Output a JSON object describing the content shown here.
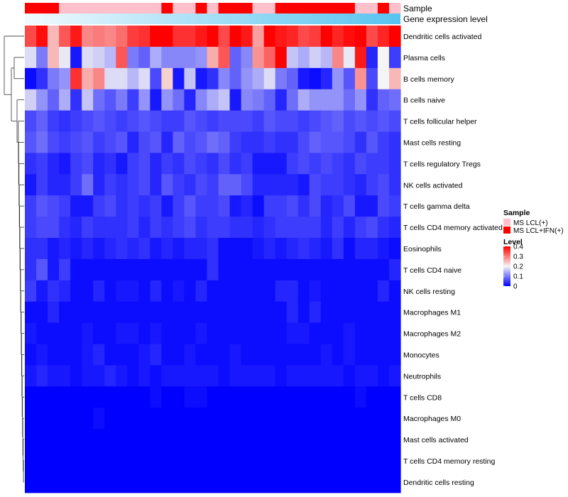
{
  "chart_data": {
    "type": "heatmap",
    "title": "",
    "annotation_tracks": [
      {
        "name": "Sample",
        "values": [
          "MS LCL+IFN(+)",
          "MS LCL+IFN(+)",
          "MS LCL+IFN(+)",
          "MS LCL(+)",
          "MS LCL(+)",
          "MS LCL(+)",
          "MS LCL(+)",
          "MS LCL(+)",
          "MS LCL(+)",
          "MS LCL(+)",
          "MS LCL(+)",
          "MS LCL(+)",
          "MS LCL+IFN(+)",
          "MS LCL(+)",
          "MS LCL(+)",
          "MS LCL+IFN(+)",
          "MS LCL(+)",
          "MS LCL+IFN(+)",
          "MS LCL+IFN(+)",
          "MS LCL+IFN(+)",
          "MS LCL(+)",
          "MS LCL(+)",
          "MS LCL+IFN(+)",
          "MS LCL+IFN(+)",
          "MS LCL+IFN(+)",
          "MS LCL+IFN(+)",
          "MS LCL+IFN(+)",
          "MS LCL+IFN(+)",
          "MS LCL+IFN(+)",
          "MS LCL(+)",
          "MS LCL(+)",
          "MS LCL+IFN(+)",
          "MS LCL(+)"
        ]
      },
      {
        "name": "Gene expression level",
        "gradient": [
          "#f2fafe",
          "#57c3ef"
        ]
      }
    ],
    "rows": [
      {
        "name": "Dendritic cells activated",
        "values": [
          0.34,
          0.39,
          0.25,
          0.33,
          0.38,
          0.29,
          0.3,
          0.29,
          0.31,
          0.35,
          0.36,
          0.4,
          0.4,
          0.36,
          0.36,
          0.38,
          0.4,
          0.34,
          0.4,
          0.38,
          0.27,
          0.4,
          0.38,
          0.37,
          0.34,
          0.35,
          0.4,
          0.37,
          0.39,
          0.4,
          0.34,
          0.37,
          0.4
        ]
      },
      {
        "name": "Plasma cells",
        "values": [
          0.18,
          0.1,
          0.25,
          0.19,
          0.02,
          0.18,
          0.17,
          0.15,
          0.33,
          0.1,
          0.08,
          0.14,
          0.11,
          0.11,
          0.11,
          0.12,
          0.26,
          0.33,
          0.08,
          0.11,
          0.28,
          0.32,
          0.4,
          0.16,
          0.14,
          0.17,
          0.15,
          0.29,
          0.19,
          0.38,
          0.03,
          0.2,
          0.05
        ]
      },
      {
        "name": "B cells memory",
        "values": [
          0.01,
          0.04,
          0.1,
          0.12,
          0.36,
          0.26,
          0.29,
          0.18,
          0.18,
          0.15,
          0.18,
          0.06,
          0.23,
          0.02,
          0.16,
          0.02,
          0.04,
          0.11,
          0.08,
          0.12,
          0.14,
          0.18,
          0.1,
          0.08,
          0.02,
          0.01,
          0.03,
          0.12,
          0.07,
          0.28,
          0.06,
          0.2,
          0.25
        ]
      },
      {
        "name": "B cells naive",
        "values": [
          0.17,
          0.12,
          0.08,
          0.14,
          0.04,
          0.16,
          0.09,
          0.07,
          0.1,
          0.05,
          0.12,
          0.02,
          0.12,
          0.09,
          0.03,
          0.11,
          0.14,
          0.16,
          0.02,
          0.11,
          0.1,
          0.08,
          0.03,
          0.09,
          0.14,
          0.12,
          0.12,
          0.12,
          0.09,
          0.12,
          0.04,
          0.08,
          0.09
        ]
      },
      {
        "name": "T cells follicular helper",
        "values": [
          0.06,
          0.08,
          0.05,
          0.04,
          0.05,
          0.06,
          0.07,
          0.06,
          0.05,
          0.06,
          0.07,
          0.06,
          0.05,
          0.05,
          0.07,
          0.06,
          0.05,
          0.06,
          0.06,
          0.06,
          0.05,
          0.07,
          0.06,
          0.06,
          0.05,
          0.06,
          0.07,
          0.08,
          0.06,
          0.07,
          0.06,
          0.07,
          0.06
        ]
      },
      {
        "name": "Mast cells resting",
        "values": [
          0.07,
          0.09,
          0.06,
          0.05,
          0.06,
          0.07,
          0.05,
          0.06,
          0.07,
          0.03,
          0.06,
          0.07,
          0.03,
          0.08,
          0.06,
          0.07,
          0.09,
          0.08,
          0.05,
          0.04,
          0.04,
          0.05,
          0.04,
          0.04,
          0.06,
          0.08,
          0.07,
          0.07,
          0.06,
          0.04,
          0.07,
          0.05,
          0.04
        ]
      },
      {
        "name": "T cells regulatory  Tregs",
        "values": [
          0.04,
          0.05,
          0.03,
          0.02,
          0.05,
          0.06,
          0.03,
          0.04,
          0.02,
          0.05,
          0.06,
          0.03,
          0.05,
          0.04,
          0.06,
          0.05,
          0.04,
          0.06,
          0.04,
          0.05,
          0.02,
          0.02,
          0.02,
          0.05,
          0.06,
          0.05,
          0.06,
          0.05,
          0.04,
          0.06,
          0.05,
          0.05,
          0.04
        ]
      },
      {
        "name": "NK cells activated",
        "values": [
          0.02,
          0.05,
          0.03,
          0.03,
          0.05,
          0.09,
          0.03,
          0.05,
          0.04,
          0.05,
          0.06,
          0.03,
          0.07,
          0.05,
          0.04,
          0.06,
          0.05,
          0.08,
          0.08,
          0.06,
          0.03,
          0.03,
          0.03,
          0.03,
          0.02,
          0.06,
          0.05,
          0.05,
          0.04,
          0.03,
          0.05,
          0.06,
          0.04
        ]
      },
      {
        "name": "T cells gamma delta",
        "values": [
          0.05,
          0.07,
          0.06,
          0.05,
          0.02,
          0.02,
          0.05,
          0.06,
          0.04,
          0.05,
          0.04,
          0.05,
          0.02,
          0.05,
          0.07,
          0.05,
          0.05,
          0.06,
          0.02,
          0.03,
          0.01,
          0.05,
          0.05,
          0.06,
          0.04,
          0.06,
          0.03,
          0.04,
          0.06,
          0.02,
          0.02,
          0.06,
          0.05
        ]
      },
      {
        "name": "T cells CD4 memory activated",
        "values": [
          0.05,
          0.06,
          0.06,
          0.04,
          0.03,
          0.05,
          0.04,
          0.04,
          0.04,
          0.05,
          0.03,
          0.05,
          0.04,
          0.05,
          0.06,
          0.04,
          0.05,
          0.05,
          0.04,
          0.04,
          0.03,
          0.04,
          0.05,
          0.05,
          0.05,
          0.05,
          0.03,
          0.05,
          0.03,
          0.05,
          0.06,
          0.04,
          0.03
        ]
      },
      {
        "name": "Eosinophils",
        "values": [
          0.04,
          0.04,
          0.02,
          0.03,
          0.02,
          0.03,
          0.02,
          0.03,
          0.04,
          0.03,
          0.04,
          0.02,
          0.03,
          0.02,
          0.03,
          0.03,
          0.04,
          0.01,
          0.01,
          0.01,
          0.02,
          0.03,
          0.02,
          0.03,
          0.04,
          0.03,
          0.02,
          0.04,
          0.01,
          0.03,
          0.03,
          0.02,
          0.01
        ]
      },
      {
        "name": "T cells CD4 naive",
        "values": [
          0.04,
          0.07,
          0.02,
          0.05,
          0.01,
          0.01,
          0.01,
          0.01,
          0.01,
          0.01,
          0.01,
          0.01,
          0.01,
          0.01,
          0.01,
          0.01,
          0.04,
          0.01,
          0.01,
          0.01,
          0.01,
          0.01,
          0.01,
          0.01,
          0.01,
          0.01,
          0.01,
          0.01,
          0.01,
          0.01,
          0.01,
          0.01,
          0.03
        ]
      },
      {
        "name": "NK cells resting",
        "values": [
          0.05,
          0.02,
          0.04,
          0.03,
          0.01,
          0.01,
          0.03,
          0.01,
          0.02,
          0.02,
          0.01,
          0.03,
          0.01,
          0.02,
          0.01,
          0.03,
          0.01,
          0.01,
          0.01,
          0.01,
          0.01,
          0.01,
          0.03,
          0.03,
          0.01,
          0.02,
          0.01,
          0.01,
          0.01,
          0.01,
          0.01,
          0.03,
          0.01
        ]
      },
      {
        "name": "Macrophages M1",
        "values": [
          0.01,
          0.01,
          0.03,
          0.01,
          0.01,
          0.01,
          0.01,
          0.01,
          0.01,
          0.01,
          0.01,
          0.01,
          0.01,
          0.01,
          0.01,
          0.01,
          0.01,
          0.01,
          0.01,
          0.01,
          0.01,
          0.01,
          0.01,
          0.03,
          0.01,
          0.03,
          0.01,
          0.01,
          0.01,
          0.01,
          0.01,
          0.01,
          0.01
        ]
      },
      {
        "name": "Macrophages M2",
        "values": [
          0.02,
          0.01,
          0.01,
          0.01,
          0.01,
          0.02,
          0.01,
          0.01,
          0.02,
          0.02,
          0.01,
          0.02,
          0.01,
          0.01,
          0.01,
          0.02,
          0.01,
          0.01,
          0.01,
          0.01,
          0.01,
          0.01,
          0.01,
          0.02,
          0.02,
          0.01,
          0.01,
          0.01,
          0.02,
          0.01,
          0.01,
          0.01,
          0.01
        ]
      },
      {
        "name": "Monocytes",
        "values": [
          0.01,
          0.02,
          0.01,
          0.01,
          0.01,
          0.02,
          0.03,
          0.01,
          0.01,
          0.01,
          0.02,
          0.03,
          0.01,
          0.01,
          0.02,
          0.01,
          0.01,
          0.01,
          0.02,
          0.01,
          0.01,
          0.01,
          0.01,
          0.01,
          0.01,
          0.01,
          0.02,
          0.01,
          0.02,
          0.01,
          0.01,
          0.01,
          0.01
        ]
      },
      {
        "name": "Neutrophils",
        "values": [
          0.02,
          0.03,
          0.02,
          0.02,
          0.01,
          0.02,
          0.02,
          0.03,
          0.02,
          0.01,
          0.02,
          0.01,
          0.02,
          0.02,
          0.02,
          0.02,
          0.02,
          0.01,
          0.02,
          0.02,
          0.02,
          0.02,
          0.01,
          0.02,
          0.02,
          0.02,
          0.02,
          0.02,
          0.01,
          0.02,
          0.02,
          0.01,
          0.02
        ]
      },
      {
        "name": "T cells CD8",
        "values": [
          0.0,
          0.0,
          0.0,
          0.0,
          0.0,
          0.0,
          0.0,
          0.0,
          0.0,
          0.0,
          0.0,
          0.01,
          0.0,
          0.0,
          0.01,
          0.01,
          0.0,
          0.0,
          0.0,
          0.0,
          0.0,
          0.0,
          0.0,
          0.0,
          0.0,
          0.0,
          0.0,
          0.0,
          0.0,
          0.01,
          0.0,
          0.0,
          0.0
        ]
      },
      {
        "name": "Macrophages M0",
        "values": [
          0.0,
          0.0,
          0.0,
          0.0,
          0.0,
          0.0,
          0.01,
          0.0,
          0.0,
          0.0,
          0.0,
          0.0,
          0.0,
          0.0,
          0.0,
          0.0,
          0.0,
          0.0,
          0.0,
          0.0,
          0.0,
          0.0,
          0.0,
          0.0,
          0.0,
          0.0,
          0.0,
          0.0,
          0.0,
          0.0,
          0.0,
          0.0,
          0.0
        ]
      },
      {
        "name": "Mast cells activated",
        "values": [
          0.0,
          0.0,
          0.0,
          0.0,
          0.0,
          0.0,
          0.0,
          0.0,
          0.0,
          0.0,
          0.0,
          0.0,
          0.0,
          0.0,
          0.0,
          0.0,
          0.0,
          0.0,
          0.0,
          0.0,
          0.0,
          0.0,
          0.0,
          0.0,
          0.0,
          0.0,
          0.0,
          0.0,
          0.0,
          0.0,
          0.0,
          0.0,
          0.0
        ]
      },
      {
        "name": "T cells CD4 memory resting",
        "values": [
          0.0,
          0.0,
          0.0,
          0.0,
          0.0,
          0.0,
          0.0,
          0.0,
          0.0,
          0.0,
          0.0,
          0.0,
          0.0,
          0.0,
          0.0,
          0.0,
          0.0,
          0.0,
          0.0,
          0.0,
          0.0,
          0.0,
          0.0,
          0.0,
          0.0,
          0.0,
          0.0,
          0.0,
          0.0,
          0.0,
          0.0,
          0.0,
          0.0
        ]
      },
      {
        "name": "Dendritic cells resting",
        "values": [
          0.0,
          0.0,
          0.0,
          0.0,
          0.0,
          0.0,
          0.0,
          0.0,
          0.0,
          0.0,
          0.0,
          0.0,
          0.0,
          0.0,
          0.0,
          0.0,
          0.0,
          0.0,
          0.0,
          0.0,
          0.0,
          0.0,
          0.0,
          0.0,
          0.0,
          0.0,
          0.0,
          0.0,
          0.0,
          0.0,
          0.0,
          0.0,
          0.0
        ]
      }
    ],
    "color_scale": {
      "range": [
        0,
        0.4
      ],
      "stops": [
        {
          "value": 0,
          "color": "#0000ff"
        },
        {
          "value": 0.2,
          "color": "#f5f5f5"
        },
        {
          "value": 0.4,
          "color": "#ff0000"
        }
      ]
    },
    "legends": [
      {
        "title": "Sample",
        "entries": [
          {
            "label": "MS LCL(+)",
            "color": "#ffc0cb"
          },
          {
            "label": "MS LCL+IFN(+)",
            "color": "#ff0000"
          }
        ]
      },
      {
        "title": "Level",
        "ticks": [
          "0.4",
          "0.3",
          "0.2",
          "0.1",
          "0"
        ]
      }
    ],
    "row_dendrogram": true
  }
}
